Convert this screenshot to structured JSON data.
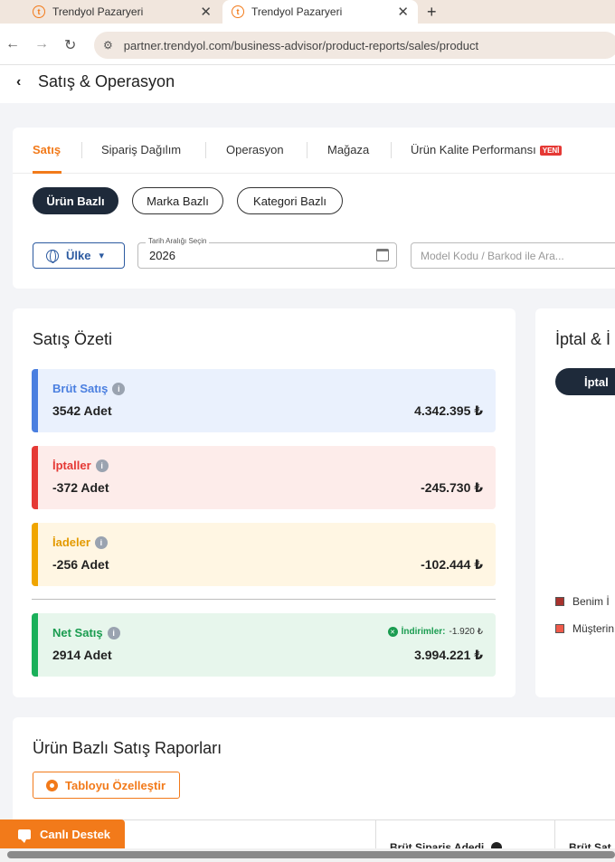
{
  "browser": {
    "tabs": [
      {
        "title": "Trendyol Pazaryeri",
        "favicon": "trendyol-icon"
      },
      {
        "title": "Trendyol Pazaryeri",
        "favicon": "trendyol-icon"
      }
    ],
    "url": "partner.trendyol.com/business-advisor/product-reports/sales/product"
  },
  "header": {
    "title": "Satış & Operasyon"
  },
  "report_tabs": {
    "items": [
      "Satış",
      "Sipariş Dağılım",
      "Operasyon",
      "Mağaza",
      "Ürün Kalite Performansı"
    ],
    "active": "Satış",
    "new_badge": "YENİ"
  },
  "scope_pills": {
    "items": [
      "Ürün Bazlı",
      "Marka Bazlı",
      "Kategori Bazlı"
    ],
    "active": "Ürün Bazlı"
  },
  "filters": {
    "country_label": "Ülke",
    "date_label": "Tarih Aralığı Seçin",
    "date_value": "2026",
    "search_placeholder": "Model Kodu / Barkod ile Ara..."
  },
  "summary": {
    "title": "Satış Özeti",
    "rows": [
      {
        "label": "Brüt Satış",
        "qty": "3542 Adet",
        "amount": "4.342.395 ₺",
        "color": "#4a7fe0"
      },
      {
        "label": "İptaller",
        "qty": "-372 Adet",
        "amount": "-245.730 ₺",
        "color": "#e53935"
      },
      {
        "label": "İadeler",
        "qty": "-256 Adet",
        "amount": "-102.444 ₺",
        "color": "#f0a500"
      }
    ],
    "net": {
      "label": "Net Satış",
      "qty": "2914 Adet",
      "amount": "3.994.221 ₺",
      "discount_label": "İndirimler:",
      "discount_value": "-1.920 ₺",
      "color": "#1ab05a"
    }
  },
  "cancel_card": {
    "title": "İptal & İ",
    "pill": "İptal",
    "legend": [
      {
        "label": "Benim İ",
        "color": "#a8322d"
      },
      {
        "label": "Müşterin",
        "color": "#f05a4a"
      }
    ]
  },
  "report": {
    "title": "Ürün Bazlı Satış Raporları",
    "customize_label": "Tabloyu Özelleştir",
    "columns": [
      "Brüt Sipariş Adedi",
      "Brüt Sat"
    ]
  },
  "chat": {
    "label": "Canlı Destek"
  }
}
